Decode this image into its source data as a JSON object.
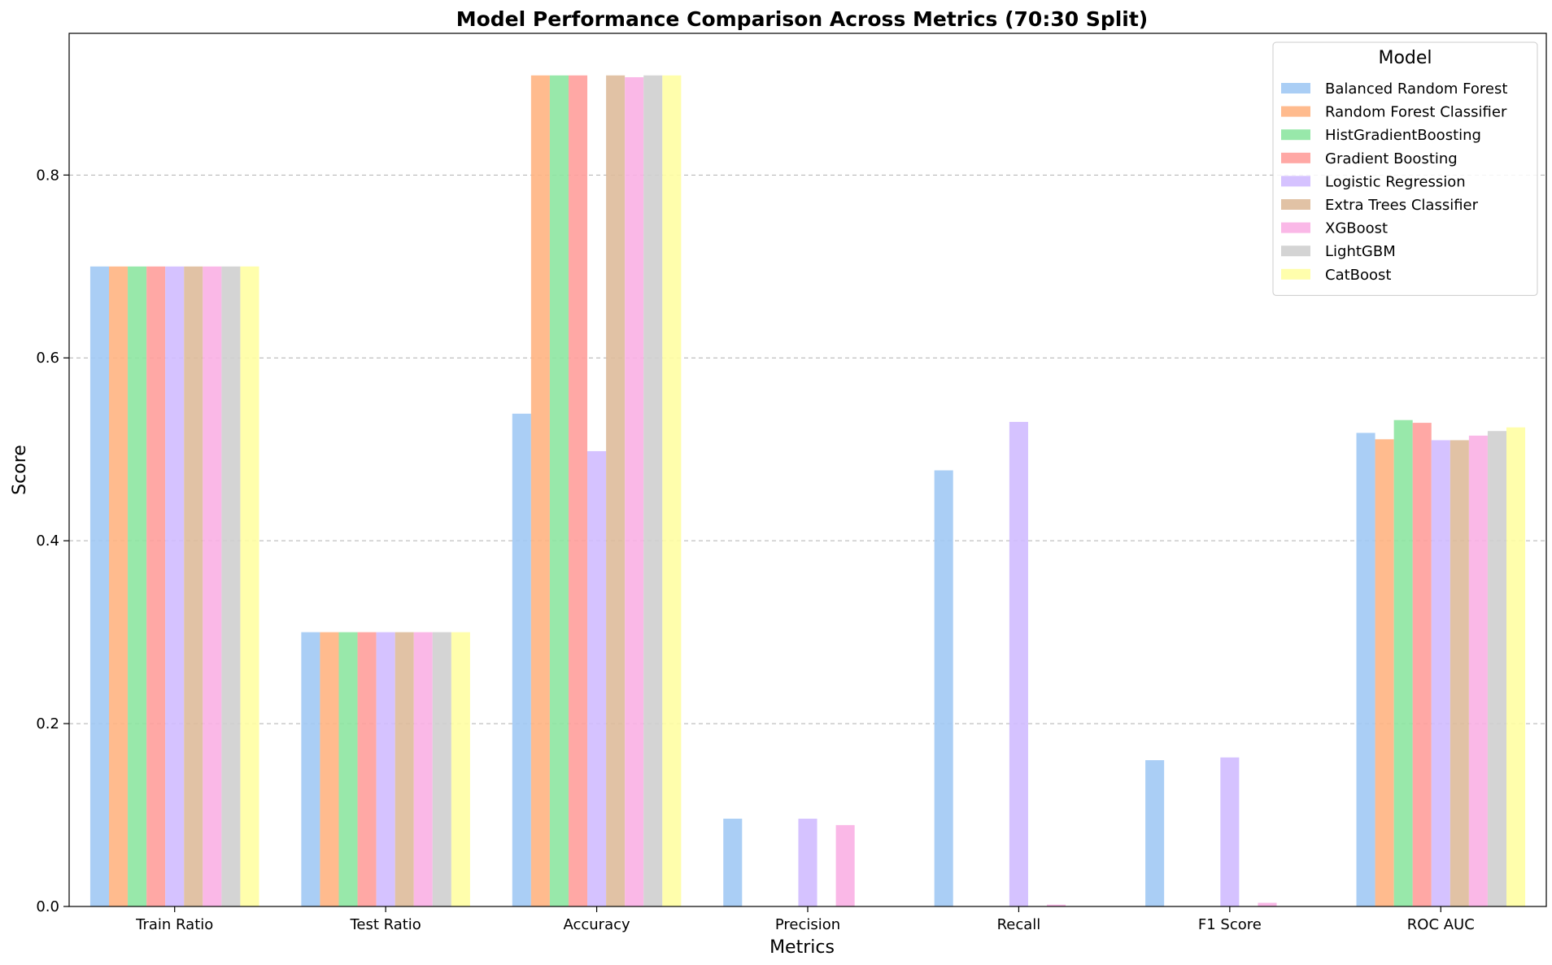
{
  "chart_data": {
    "type": "bar",
    "title": "Model Performance Comparison Across Metrics (70:30 Split)",
    "xlabel": "Metrics",
    "ylabel": "Score",
    "ylim": [
      0,
      0.955
    ],
    "yticks": [
      0.0,
      0.2,
      0.4,
      0.6,
      0.8
    ],
    "ytick_labels": [
      "0.0",
      "0.2",
      "0.4",
      "0.6",
      "0.8"
    ],
    "grid": "y-dashed",
    "legend_title": "Model",
    "legend_position": "top-right",
    "categories": [
      "Train Ratio",
      "Test Ratio",
      "Accuracy",
      "Precision",
      "Recall",
      "F1 Score",
      "ROC AUC"
    ],
    "series": [
      {
        "name": "Balanced Random Forest",
        "color": "#a1c9f4",
        "values": [
          0.7,
          0.3,
          0.539,
          0.096,
          0.477,
          0.16,
          0.518
        ]
      },
      {
        "name": "Random Forest Classifier",
        "color": "#ffb482",
        "values": [
          0.7,
          0.3,
          0.909,
          0.0,
          0.0,
          0.0,
          0.511
        ]
      },
      {
        "name": "HistGradientBoosting",
        "color": "#8de5a1",
        "values": [
          0.7,
          0.3,
          0.909,
          0.0,
          0.0,
          0.0,
          0.532
        ]
      },
      {
        "name": "Gradient Boosting",
        "color": "#ff9f9b",
        "values": [
          0.7,
          0.3,
          0.909,
          0.0,
          0.0,
          0.0,
          0.529
        ]
      },
      {
        "name": "Logistic Regression",
        "color": "#d0bbff",
        "values": [
          0.7,
          0.3,
          0.498,
          0.096,
          0.53,
          0.163,
          0.51
        ]
      },
      {
        "name": "Extra Trees Classifier",
        "color": "#debb9b",
        "values": [
          0.7,
          0.3,
          0.909,
          0.0,
          0.0,
          0.0,
          0.51
        ]
      },
      {
        "name": "XGBoost",
        "color": "#fab0e4",
        "values": [
          0.7,
          0.3,
          0.907,
          0.089,
          0.002,
          0.004,
          0.515
        ]
      },
      {
        "name": "LightGBM",
        "color": "#cfcfcf",
        "values": [
          0.7,
          0.3,
          0.909,
          0.0,
          0.0,
          0.0,
          0.52
        ]
      },
      {
        "name": "CatBoost",
        "color": "#fffea3",
        "values": [
          0.7,
          0.3,
          0.909,
          0.0,
          0.0,
          0.0,
          0.524
        ]
      }
    ]
  }
}
